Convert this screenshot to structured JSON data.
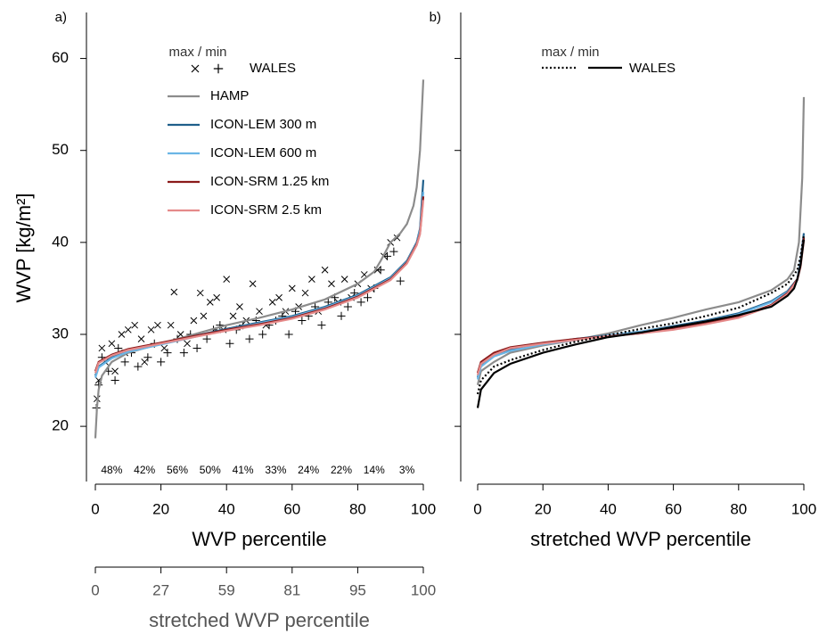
{
  "chart_data": [
    {
      "type": "line",
      "panel_label": "a)",
      "ylabel": "WVP [kg/m²]",
      "xlabel": "WVP percentile",
      "xlim": [
        0,
        100
      ],
      "xticks": [
        0,
        20,
        40,
        60,
        80,
        100
      ],
      "ylim": [
        14,
        65
      ],
      "yticks": [
        20,
        30,
        40,
        50,
        60
      ],
      "ytick_labels": true,
      "x2label": "stretched WVP percentile",
      "x2ticks": [
        0,
        {
          "value": 20,
          "label": "27"
        },
        {
          "value": 40,
          "label": "59"
        },
        {
          "value": 60,
          "label": "81"
        },
        {
          "value": 80,
          "label": "95"
        },
        100
      ],
      "bin_labels": [
        "48%",
        "42%",
        "56%",
        "50%",
        "41%",
        "33%",
        "24%",
        "22%",
        "14%",
        "3%"
      ],
      "legend_title": "max / min",
      "scatter_name": "WALES",
      "scatter": [
        {
          "marker": "x",
          "color": "#000000",
          "x": [
            0.5,
            1,
            2,
            3,
            5,
            6,
            8,
            9,
            10,
            12,
            14,
            15,
            17,
            19,
            21,
            23,
            24,
            26,
            28,
            30,
            32,
            33,
            35,
            37,
            39,
            40,
            42,
            44,
            46,
            48,
            50,
            52,
            54,
            56,
            58,
            60,
            62,
            64,
            66,
            68,
            70,
            72,
            74,
            76,
            78,
            80,
            82,
            84,
            86,
            88,
            90,
            92
          ],
          "values": [
            23,
            25,
            28.5,
            27,
            29,
            26,
            30,
            28,
            30.5,
            31,
            29.5,
            27,
            30.5,
            31,
            28.5,
            31,
            34.6,
            30,
            29,
            31.5,
            34.5,
            32,
            33.5,
            34,
            30.5,
            36,
            32,
            33,
            31.5,
            35.5,
            32.5,
            31,
            33.5,
            34,
            32.5,
            35,
            33,
            34.5,
            36,
            32.5,
            37,
            35.5,
            33.5,
            36,
            34,
            35.5,
            36.5,
            35,
            37,
            38.5,
            40,
            40.5
          ]
        },
        {
          "marker": "+",
          "color": "#000000",
          "x": [
            0.3,
            1,
            2,
            4,
            6,
            7,
            9,
            11,
            13,
            16,
            18,
            20,
            22,
            25,
            27,
            29,
            31,
            34,
            36,
            38,
            41,
            43,
            45,
            47,
            49,
            51,
            53,
            55,
            57,
            59,
            61,
            63,
            65,
            67,
            69,
            71,
            73,
            75,
            77,
            79,
            81,
            83,
            85,
            87,
            89,
            91,
            93
          ],
          "values": [
            22,
            24.5,
            27.5,
            26,
            25,
            28.5,
            27,
            28,
            26.5,
            27.5,
            29,
            27,
            28,
            29.5,
            28,
            30,
            28.5,
            29.5,
            30.5,
            31,
            29,
            30.5,
            31,
            29.5,
            31.5,
            30,
            31,
            31.5,
            32,
            30,
            32.5,
            31.5,
            32,
            33,
            31,
            33.5,
            34,
            32,
            33,
            34.5,
            33.5,
            34,
            35,
            37,
            38.5,
            39,
            35.8
          ]
        }
      ],
      "series": [
        {
          "name": "HAMP",
          "color": "#8c8c8c",
          "x": [
            0,
            0.5,
            1,
            2,
            5,
            10,
            20,
            30,
            40,
            50,
            60,
            70,
            80,
            85,
            87,
            90,
            93,
            95,
            97,
            98,
            99,
            100
          ],
          "values": [
            18.7,
            22,
            24,
            25.5,
            27,
            28,
            29,
            30,
            31,
            31.8,
            32.7,
            33.8,
            35.5,
            36.8,
            38,
            40,
            41,
            42,
            44,
            46,
            50,
            57.7
          ]
        },
        {
          "name": "ICON-LEM 300 m",
          "color": "#1f5f8b",
          "x": [
            0,
            1,
            5,
            10,
            20,
            30,
            40,
            50,
            60,
            70,
            80,
            90,
            95,
            98,
            99,
            100
          ],
          "values": [
            25.5,
            26.5,
            27.5,
            28.2,
            29,
            29.8,
            30.6,
            31.3,
            32,
            33,
            34.3,
            36.2,
            38,
            40,
            41.5,
            46.8
          ]
        },
        {
          "name": "ICON-LEM 600 m",
          "color": "#6bb6e6",
          "x": [
            0,
            1,
            5,
            10,
            20,
            30,
            40,
            50,
            60,
            70,
            80,
            90,
            95,
            98,
            99,
            100
          ],
          "values": [
            25.3,
            26.4,
            27.4,
            28.1,
            28.9,
            29.7,
            30.5,
            31.2,
            31.9,
            32.9,
            34.2,
            36.1,
            37.9,
            39.9,
            41.3,
            45.5
          ]
        },
        {
          "name": "ICON-SRM 1.25 km",
          "color": "#8b1a1a",
          "x": [
            0,
            1,
            5,
            10,
            20,
            30,
            40,
            50,
            60,
            70,
            80,
            90,
            95,
            98,
            99,
            100
          ],
          "values": [
            26,
            27,
            27.8,
            28.4,
            29.1,
            29.8,
            30.5,
            31.1,
            31.8,
            32.8,
            34.1,
            36,
            37.8,
            39.8,
            41,
            45
          ]
        },
        {
          "name": "ICON-SRM 2.5 km",
          "color": "#e58a8a",
          "x": [
            0,
            1,
            5,
            10,
            20,
            30,
            40,
            50,
            60,
            70,
            80,
            90,
            95,
            98,
            99,
            100
          ],
          "values": [
            25.8,
            26.9,
            27.7,
            28.3,
            29,
            29.7,
            30.4,
            31,
            31.7,
            32.7,
            34,
            35.9,
            37.7,
            39.7,
            40.9,
            44.6
          ]
        }
      ]
    },
    {
      "type": "line",
      "panel_label": "b)",
      "xlabel": "stretched WVP percentile",
      "xlim": [
        0,
        100
      ],
      "xticks": [
        0,
        20,
        40,
        60,
        80,
        100
      ],
      "ylim": [
        14,
        65
      ],
      "yticks": [
        20,
        30,
        40,
        50,
        60
      ],
      "ytick_labels": false,
      "legend_title": "max / min",
      "legend_name": "WALES",
      "series": [
        {
          "color": "#8c8c8c",
          "x": [
            0,
            1,
            5,
            10,
            20,
            30,
            40,
            50,
            60,
            70,
            80,
            90,
            95,
            97,
            98.5,
            99.5,
            100
          ],
          "values": [
            24.5,
            26,
            27,
            28,
            28.8,
            29.4,
            30.1,
            31,
            31.8,
            32.7,
            33.5,
            34.8,
            36,
            37,
            40,
            47,
            55.8
          ]
        },
        {
          "color": "#1f5f8b",
          "x": [
            0,
            1,
            5,
            10,
            20,
            30,
            40,
            50,
            60,
            70,
            80,
            90,
            95,
            98,
            99,
            100
          ],
          "values": [
            25.3,
            26.7,
            27.7,
            28.3,
            29,
            29.5,
            29.9,
            30.3,
            30.9,
            31.5,
            32.3,
            33.6,
            34.7,
            36,
            38,
            41
          ]
        },
        {
          "color": "#6bb6e6",
          "x": [
            0,
            1,
            5,
            10,
            20,
            30,
            40,
            50,
            60,
            70,
            80,
            90,
            95,
            98,
            99,
            100
          ],
          "values": [
            25.1,
            26.5,
            27.6,
            28.2,
            28.9,
            29.4,
            29.9,
            30.3,
            30.8,
            31.4,
            32.2,
            33.5,
            34.6,
            35.9,
            37.8,
            40.6
          ]
        },
        {
          "color": "#8b1a1a",
          "x": [
            0,
            1,
            5,
            10,
            20,
            30,
            40,
            50,
            60,
            70,
            80,
            90,
            95,
            98,
            99,
            100
          ],
          "values": [
            25.8,
            27,
            28,
            28.6,
            29.1,
            29.5,
            29.8,
            30.1,
            30.6,
            31.2,
            31.9,
            33.2,
            34.5,
            36,
            37.5,
            40.5
          ]
        },
        {
          "color": "#e58a8a",
          "x": [
            0,
            1,
            5,
            10,
            20,
            30,
            40,
            50,
            60,
            70,
            80,
            90,
            95,
            98,
            99,
            100
          ],
          "values": [
            25.6,
            26.8,
            27.8,
            28.5,
            29,
            29.4,
            29.8,
            30.1,
            30.5,
            31.1,
            31.8,
            33.1,
            34.4,
            35.9,
            37.3,
            40.2
          ]
        },
        {
          "color": "#000000",
          "dash": "dotted",
          "in_legend": true,
          "x": [
            0,
            1,
            5,
            10,
            20,
            30,
            40,
            50,
            60,
            70,
            80,
            90,
            95,
            98,
            99,
            100
          ],
          "values": [
            23.5,
            25,
            26.5,
            27.2,
            28.3,
            29.2,
            29.9,
            30.6,
            31.2,
            32,
            32.9,
            34.5,
            35.5,
            37,
            38.5,
            40.8
          ]
        },
        {
          "color": "#000000",
          "dash": "solid",
          "in_legend": true,
          "x": [
            0,
            1,
            5,
            10,
            20,
            30,
            40,
            50,
            60,
            70,
            80,
            90,
            95,
            97,
            98,
            99,
            100
          ],
          "values": [
            22,
            24,
            25.8,
            26.8,
            28,
            28.9,
            29.7,
            30.2,
            30.8,
            31.4,
            32.1,
            33,
            34.2,
            35,
            36,
            37.5,
            40.3
          ]
        }
      ]
    }
  ]
}
